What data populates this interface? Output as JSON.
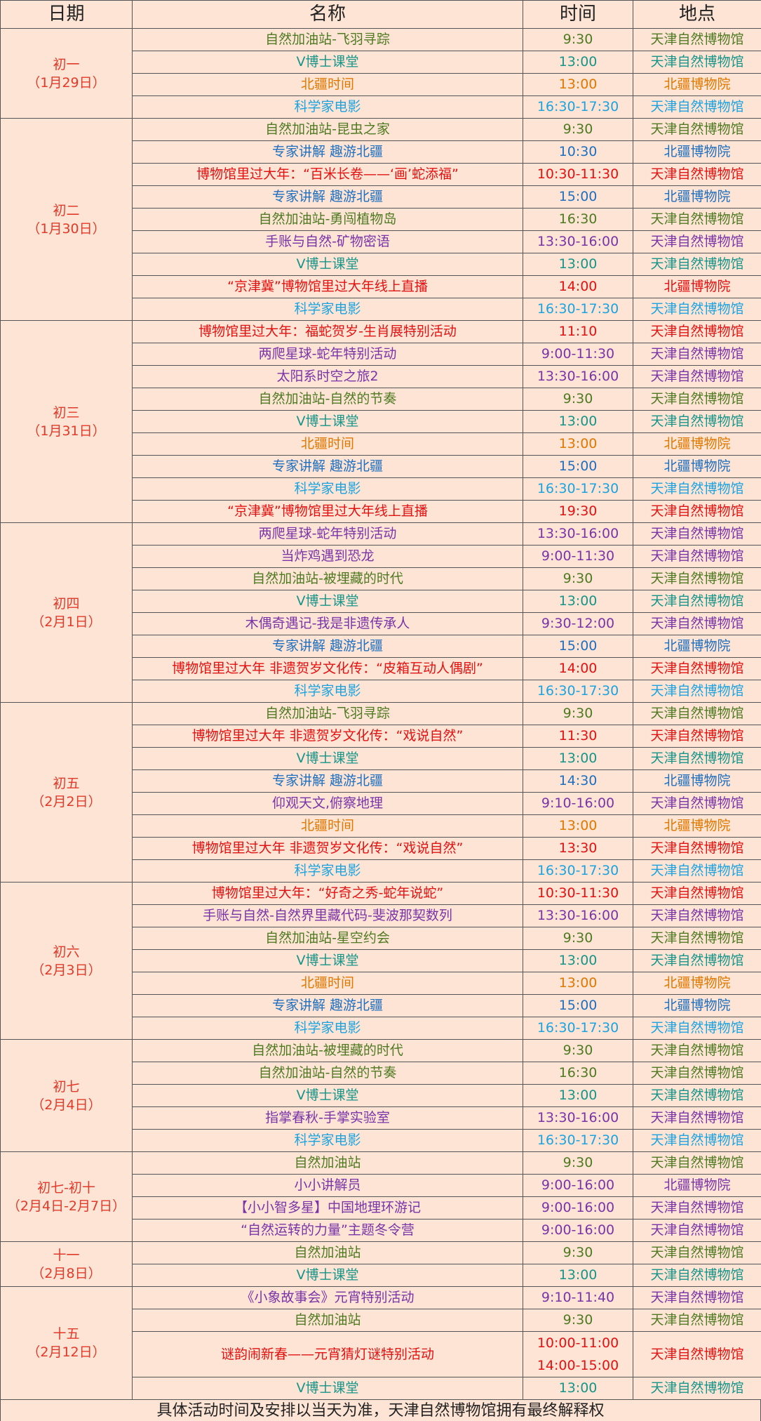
{
  "table": {
    "header": [
      "日期",
      "名称",
      "时间",
      "地点"
    ],
    "groups": [
      {
        "date": "初一",
        "date_sub": "（1月29日）",
        "rows": [
          {
            "name": "自然加油站-飞羽寻踪",
            "time": "9:30",
            "place": "天津自然博物馆",
            "color": "#4f7a22"
          },
          {
            "name": "V博士课堂",
            "time": "13:00",
            "place": "天津自然博物馆",
            "color": "#17958a"
          },
          {
            "name": "北疆时间",
            "time": "13:00",
            "place": "北疆博物院",
            "color": "#e07800"
          },
          {
            "name": "科学家电影",
            "time": "16:30-17:30",
            "place": "天津自然博物馆",
            "color": "#1ca3e0"
          }
        ]
      },
      {
        "date": "初二",
        "date_sub": "（1月30日）",
        "rows": [
          {
            "name": "自然加油站-昆虫之家",
            "time": "9:30",
            "place": "天津自然博物馆",
            "color": "#4f7a22"
          },
          {
            "name": "专家讲解 趣游北疆",
            "time": "10:30",
            "place": "北疆博物院",
            "color": "#1f6fc0"
          },
          {
            "name": "博物馆里过大年：“百米长卷——‘画’蛇添福”",
            "time": "10:30-11:30",
            "place": "天津自然博物馆",
            "color": "#e31212"
          },
          {
            "name": "专家讲解 趣游北疆",
            "time": "15:00",
            "place": "北疆博物院",
            "color": "#1f6fc0"
          },
          {
            "name": "自然加油站-勇闯植物岛",
            "time": "16:30",
            "place": "天津自然博物馆",
            "color": "#4f7a22"
          },
          {
            "name": "手账与自然-矿物密语",
            "time": "13:30-16:00",
            "place": "天津自然博物馆",
            "color": "#7a34a8"
          },
          {
            "name": "V博士课堂",
            "time": "13:00",
            "place": "天津自然博物馆",
            "color": "#17958a"
          },
          {
            "name": "“京津冀”博物馆里过大年线上直播",
            "time": "14:00",
            "place": "北疆博物院",
            "color": "#e31212"
          },
          {
            "name": "科学家电影",
            "time": "16:30-17:30",
            "place": "天津自然博物馆",
            "color": "#1ca3e0"
          }
        ]
      },
      {
        "date": "初三",
        "date_sub": "（1月31日）",
        "rows": [
          {
            "name": "博物馆里过大年：福蛇贺岁-生肖展特别活动",
            "time": "11:10",
            "place": "天津自然博物馆",
            "color": "#e31212"
          },
          {
            "name": "两爬星球-蛇年特别活动",
            "time": "9:00-11:30",
            "place": "天津自然博物馆",
            "color": "#7a34a8"
          },
          {
            "name": "太阳系时空之旅2",
            "time": "13:30-16:00",
            "place": "天津自然博物馆",
            "color": "#7a34a8"
          },
          {
            "name": "自然加油站-自然的节奏",
            "time": "9:30",
            "place": "天津自然博物馆",
            "color": "#4f7a22"
          },
          {
            "name": "V博士课堂",
            "time": "13:00",
            "place": "天津自然博物馆",
            "color": "#17958a"
          },
          {
            "name": "北疆时间",
            "time": "13:00",
            "place": "北疆博物院",
            "color": "#e07800"
          },
          {
            "name": "专家讲解 趣游北疆",
            "time": "15:00",
            "place": "北疆博物院",
            "color": "#1f6fc0"
          },
          {
            "name": "科学家电影",
            "time": "16:30-17:30",
            "place": "天津自然博物馆",
            "color": "#1ca3e0"
          },
          {
            "name": "“京津冀”博物馆里过大年线上直播",
            "time": "19:30",
            "place": "天津自然博物馆",
            "color": "#e31212"
          }
        ]
      },
      {
        "date": "初四",
        "date_sub": "（2月1日）",
        "rows": [
          {
            "name": "两爬星球-蛇年特别活动",
            "time": "13:30-16:00",
            "place": "天津自然博物馆",
            "color": "#7a34a8"
          },
          {
            "name": "当炸鸡遇到恐龙",
            "time": "9:00-11:30",
            "place": "天津自然博物馆",
            "color": "#7a34a8"
          },
          {
            "name": "自然加油站-被埋藏的时代",
            "time": "9:30",
            "place": "天津自然博物馆",
            "color": "#4f7a22"
          },
          {
            "name": "V博士课堂",
            "time": "13:00",
            "place": "天津自然博物馆",
            "color": "#17958a"
          },
          {
            "name": "木偶奇遇记-我是非遗传承人",
            "time": "9:30-12:00",
            "place": "天津自然博物馆",
            "color": "#7a34a8"
          },
          {
            "name": "专家讲解 趣游北疆",
            "time": "15:00",
            "place": "北疆博物院",
            "color": "#1f6fc0"
          },
          {
            "name": "博物馆里过大年 非遗贺岁文化传：“皮箱互动人偶剧”",
            "time": "14:00",
            "place": "天津自然博物馆",
            "color": "#e31212"
          },
          {
            "name": "科学家电影",
            "time": "16:30-17:30",
            "place": "天津自然博物馆",
            "color": "#1ca3e0"
          }
        ]
      },
      {
        "date": "初五",
        "date_sub": "（2月2日）",
        "rows": [
          {
            "name": "自然加油站-飞羽寻踪",
            "time": "9:30",
            "place": "天津自然博物馆",
            "color": "#4f7a22"
          },
          {
            "name": "博物馆里过大年 非遗贺岁文化传：“戏说自然”",
            "time": "11:30",
            "place": "天津自然博物馆",
            "color": "#e31212"
          },
          {
            "name": "V博士课堂",
            "time": "13:00",
            "place": "天津自然博物馆",
            "color": "#17958a"
          },
          {
            "name": "专家讲解 趣游北疆",
            "time": "14:30",
            "place": "北疆博物院",
            "color": "#1f6fc0"
          },
          {
            "name": "仰观天文,俯察地理",
            "time": "9:10-16:00",
            "place": "天津自然博物馆",
            "color": "#7a34a8"
          },
          {
            "name": "北疆时间",
            "time": "13:00",
            "place": "北疆博物院",
            "color": "#e07800"
          },
          {
            "name": "博物馆里过大年 非遗贺岁文化传：“戏说自然”",
            "time": "13:30",
            "place": "天津自然博物馆",
            "color": "#e31212"
          },
          {
            "name": "科学家电影",
            "time": "16:30-17:30",
            "place": "天津自然博物馆",
            "color": "#1ca3e0"
          }
        ]
      },
      {
        "date": "初六",
        "date_sub": "（2月3日）",
        "rows": [
          {
            "name": "博物馆里过大年：“好奇之秀-蛇年说蛇”",
            "time": "10:30-11:30",
            "place": "天津自然博物馆",
            "color": "#e31212"
          },
          {
            "name": "手账与自然-自然界里藏代码-斐波那契数列",
            "time": "13:30-16:00",
            "place": "天津自然博物馆",
            "color": "#7a34a8"
          },
          {
            "name": "自然加油站-星空约会",
            "time": "9:30",
            "place": "天津自然博物馆",
            "color": "#4f7a22"
          },
          {
            "name": "V博士课堂",
            "time": "13:00",
            "place": "天津自然博物馆",
            "color": "#17958a"
          },
          {
            "name": "北疆时间",
            "time": "13:00",
            "place": "北疆博物院",
            "color": "#e07800"
          },
          {
            "name": "专家讲解 趣游北疆",
            "time": "15:00",
            "place": "北疆博物院",
            "color": "#1f6fc0"
          },
          {
            "name": "科学家电影",
            "time": "16:30-17:30",
            "place": "天津自然博物馆",
            "color": "#1ca3e0"
          }
        ]
      },
      {
        "date": "初七",
        "date_sub": "（2月4日）",
        "rows": [
          {
            "name": "自然加油站-被埋藏的时代",
            "time": "9:30",
            "place": "天津自然博物馆",
            "color": "#4f7a22"
          },
          {
            "name": "自然加油站-自然的节奏",
            "time": "16:30",
            "place": "天津自然博物馆",
            "color": "#4f7a22"
          },
          {
            "name": "V博士课堂",
            "time": "13:00",
            "place": "天津自然博物馆",
            "color": "#17958a"
          },
          {
            "name": "指掌春秋-手掌实验室",
            "time": "13:30-16:00",
            "place": "天津自然博物馆",
            "color": "#7a34a8"
          },
          {
            "name": "科学家电影",
            "time": "16:30-17:30",
            "place": "天津自然博物馆",
            "color": "#1ca3e0"
          }
        ]
      },
      {
        "date": "初七-初十",
        "date_sub": "（2月4日-2月7日）",
        "rows": [
          {
            "name": "自然加油站",
            "time": "9:30",
            "place": "天津自然博物馆",
            "color": "#4f7a22"
          },
          {
            "name": "小小讲解员",
            "time": "9:00-16:00",
            "place": "北疆博物院",
            "color": "#7a34a8"
          },
          {
            "name": "【小小智多星】中国地理环游记",
            "time": "9:00-16:00",
            "place": "天津自然博物馆",
            "color": "#7a34a8"
          },
          {
            "name": "“自然运转的力量”主题冬令营",
            "time": "9:00-16:00",
            "place": "天津自然博物馆",
            "color": "#7a34a8"
          }
        ]
      },
      {
        "date": "十一",
        "date_sub": "（2月8日）",
        "rows": [
          {
            "name": "自然加油站",
            "time": "9:30",
            "place": "天津自然博物馆",
            "color": "#4f7a22"
          },
          {
            "name": "V博士课堂",
            "time": "13:00",
            "place": "天津自然博物馆",
            "color": "#17958a"
          }
        ]
      },
      {
        "date": "十五",
        "date_sub": "（2月12日）",
        "rows": [
          {
            "name": "《小象故事会》元宵特别活动",
            "time": "9:10-11:40",
            "place": "天津自然博物馆",
            "color": "#7a34a8"
          },
          {
            "name": "自然加油站",
            "time": "9:30",
            "place": "天津自然博物馆",
            "color": "#4f7a22"
          },
          {
            "name": "谜韵闹新春——元宵猜灯谜特别活动",
            "time": [
              "10:00-11:00",
              "14:00-15:00"
            ],
            "place": "天津自然博物馆",
            "color": "#e31212"
          },
          {
            "name": "V博士课堂",
            "time": "13:00",
            "place": "天津自然博物馆",
            "color": "#17958a"
          }
        ]
      }
    ]
  },
  "footer": "具体活动时间及安排以当天为准，天津自然博物馆拥有最终解释权"
}
